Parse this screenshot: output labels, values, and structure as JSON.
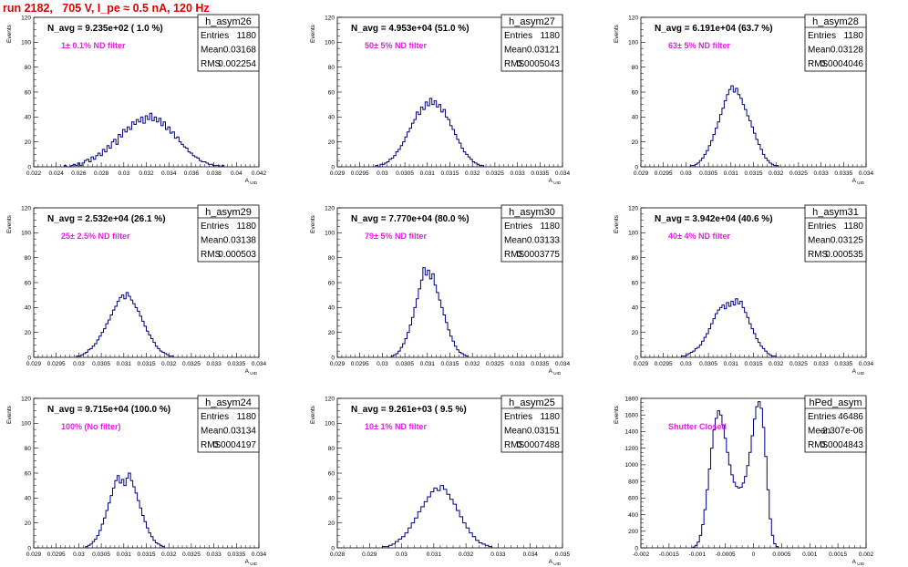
{
  "page_title": "run 2182,   705 V, I_pe ≈ 0.5 nA, 120 Hz",
  "chart_data": [
    {
      "type": "histogram",
      "name": "h_asym26",
      "n_avg": "N_avg = 9.235e+02 ( 1.0 %)",
      "note": "1± 0.1% ND filter",
      "ylabel": "Events",
      "xlabel": "A_UID",
      "ylim": [
        0,
        120
      ],
      "yticks": [
        0,
        20,
        40,
        60,
        80,
        100,
        120
      ],
      "xlim": [
        0.022,
        0.042
      ],
      "xticks": [
        "0.022",
        "0.024",
        "0.026",
        "0.028",
        "0.03",
        "0.032",
        "0.034",
        "0.036",
        "0.038",
        "0.04",
        "0.042"
      ],
      "stats": [
        [
          "Entries",
          "1180"
        ],
        [
          "Mean",
          "0.03168"
        ],
        [
          "RMS",
          "0.002254"
        ]
      ],
      "bins": {
        "start": 0.0247,
        "width": 0.0002,
        "counts": [
          1,
          0,
          0,
          1,
          2,
          1,
          3,
          1,
          3,
          5,
          6,
          4,
          8,
          6,
          9,
          11,
          9,
          14,
          12,
          17,
          15,
          20,
          22,
          18,
          26,
          24,
          30,
          28,
          32,
          30,
          36,
          34,
          38,
          36,
          40,
          35,
          41,
          38,
          43,
          37,
          40,
          36,
          39,
          33,
          36,
          30,
          32,
          27,
          28,
          23,
          24,
          20,
          18,
          16,
          15,
          12,
          11,
          9,
          8,
          7,
          5,
          4,
          4,
          3,
          2,
          2,
          1,
          1,
          1,
          0,
          1
        ]
      }
    },
    {
      "type": "histogram",
      "name": "h_asym27",
      "n_avg": "N_avg = 4.953e+04 (51.0 %)",
      "note": "50± 5% ND filter",
      "ylabel": "Events",
      "xlabel": "A_UID",
      "ylim": [
        0,
        120
      ],
      "yticks": [
        0,
        20,
        40,
        60,
        80,
        100,
        120
      ],
      "xlim": [
        0.029,
        0.034
      ],
      "xticks": [
        "0.029",
        "0.0295",
        "0.03",
        "0.0305",
        "0.031",
        "0.0315",
        "0.032",
        "0.0325",
        "0.033",
        "0.0335",
        "0.034"
      ],
      "stats": [
        [
          "Entries",
          "1180"
        ],
        [
          "Mean",
          "0.03121"
        ],
        [
          "RMS",
          "0.0005043"
        ]
      ],
      "bins": {
        "start": 0.02985,
        "width": 5e-05,
        "counts": [
          1,
          0,
          2,
          2,
          3,
          4,
          6,
          7,
          9,
          12,
          14,
          17,
          20,
          24,
          28,
          31,
          35,
          38,
          44,
          42,
          48,
          46,
          52,
          49,
          55,
          50,
          53,
          48,
          50,
          44,
          46,
          40,
          38,
          33,
          30,
          26,
          22,
          19,
          15,
          12,
          10,
          8,
          6,
          4,
          3,
          2,
          1,
          1
        ]
      }
    },
    {
      "type": "histogram",
      "name": "h_asym28",
      "n_avg": "N_avg = 6.191e+04 (63.7 %)",
      "note": "63± 5% ND filter",
      "ylabel": "Events",
      "xlabel": "A_UID",
      "ylim": [
        0,
        120
      ],
      "yticks": [
        0,
        20,
        40,
        60,
        80,
        100,
        120
      ],
      "xlim": [
        0.029,
        0.034
      ],
      "xticks": [
        "0.029",
        "0.0295",
        "0.03",
        "0.0305",
        "0.031",
        "0.0315",
        "0.032",
        "0.0325",
        "0.033",
        "0.0335",
        "0.034"
      ],
      "stats": [
        [
          "Entries",
          "1180"
        ],
        [
          "Mean",
          "0.03128"
        ],
        [
          "RMS",
          "0.0004046"
        ]
      ],
      "bins": {
        "start": 0.0301,
        "width": 5e-05,
        "counts": [
          1,
          1,
          2,
          3,
          5,
          7,
          10,
          13,
          17,
          21,
          26,
          31,
          36,
          42,
          47,
          53,
          58,
          62,
          65,
          60,
          63,
          58,
          55,
          50,
          46,
          41,
          37,
          32,
          27,
          22,
          18,
          14,
          10,
          7,
          5,
          3,
          2,
          1,
          1
        ]
      }
    },
    {
      "type": "histogram",
      "name": "h_asym29",
      "n_avg": "N_avg = 2.532e+04 (26.1 %)",
      "note": "25± 2.5% ND filter",
      "ylabel": "Events",
      "xlabel": "A_UID",
      "ylim": [
        0,
        120
      ],
      "yticks": [
        0,
        20,
        40,
        60,
        80,
        100,
        120
      ],
      "xlim": [
        0.029,
        0.034
      ],
      "xticks": [
        "0.029",
        "0.0295",
        "0.03",
        "0.0305",
        "0.031",
        "0.0315",
        "0.032",
        "0.0325",
        "0.033",
        "0.0335",
        "0.034"
      ],
      "stats": [
        [
          "Entries",
          "1180"
        ],
        [
          "Mean",
          "0.03138"
        ],
        [
          "RMS",
          "0.000503"
        ]
      ],
      "bins": {
        "start": 0.02995,
        "width": 5e-05,
        "counts": [
          1,
          1,
          2,
          3,
          4,
          6,
          7,
          9,
          11,
          14,
          17,
          20,
          23,
          27,
          30,
          34,
          38,
          41,
          45,
          48,
          50,
          47,
          52,
          49,
          46,
          43,
          40,
          37,
          33,
          29,
          25,
          21,
          18,
          15,
          12,
          9,
          7,
          5,
          4,
          3,
          2,
          1,
          1
        ]
      }
    },
    {
      "type": "histogram",
      "name": "h_asym30",
      "n_avg": "N_avg = 7.770e+04 (80.0 %)",
      "note": "79± 5% ND filter",
      "ylabel": "Events",
      "xlabel": "A_UID",
      "ylim": [
        0,
        120
      ],
      "yticks": [
        0,
        20,
        40,
        60,
        80,
        100,
        120
      ],
      "xlim": [
        0.029,
        0.034
      ],
      "xticks": [
        "0.029",
        "0.0295",
        "0.03",
        "0.0305",
        "0.031",
        "0.0315",
        "0.032",
        "0.0325",
        "0.033",
        "0.0335",
        "0.034"
      ],
      "stats": [
        [
          "Entries",
          "1180"
        ],
        [
          "Mean",
          "0.03133"
        ],
        [
          "RMS",
          "0.0003775"
        ]
      ],
      "bins": {
        "start": 0.0302,
        "width": 5e-05,
        "counts": [
          1,
          2,
          3,
          5,
          8,
          11,
          15,
          20,
          26,
          32,
          40,
          47,
          55,
          62,
          72,
          66,
          70,
          63,
          67,
          58,
          52,
          46,
          40,
          34,
          28,
          22,
          17,
          13,
          9,
          6,
          4,
          3,
          2,
          1
        ]
      }
    },
    {
      "type": "histogram",
      "name": "h_asym31",
      "n_avg": "N_avg = 3.942e+04 (40.6 %)",
      "note": "40± 4% ND filter",
      "ylabel": "Events",
      "xlabel": "A_UID",
      "ylim": [
        0,
        120
      ],
      "yticks": [
        0,
        20,
        40,
        60,
        80,
        100,
        120
      ],
      "xlim": [
        0.029,
        0.034
      ],
      "xticks": [
        "0.029",
        "0.0295",
        "0.03",
        "0.0305",
        "0.031",
        "0.0315",
        "0.032",
        "0.0325",
        "0.033",
        "0.0335",
        "0.034"
      ],
      "stats": [
        [
          "Entries",
          "1180"
        ],
        [
          "Mean",
          "0.03125"
        ],
        [
          "RMS",
          "0.000535"
        ]
      ],
      "bins": {
        "start": 0.0299,
        "width": 5e-05,
        "counts": [
          1,
          1,
          2,
          3,
          4,
          5,
          7,
          8,
          10,
          13,
          16,
          19,
          23,
          27,
          31,
          35,
          38,
          40,
          42,
          39,
          44,
          41,
          45,
          42,
          47,
          43,
          45,
          40,
          36,
          32,
          27,
          23,
          19,
          15,
          12,
          9,
          7,
          5,
          3,
          2,
          1,
          1
        ]
      }
    },
    {
      "type": "histogram",
      "name": "h_asym24",
      "n_avg": "N_avg = 9.715e+04 (100.0 %)",
      "note": "100% (No filter)",
      "ylabel": "Events",
      "xlabel": "A_UID",
      "ylim": [
        0,
        120
      ],
      "yticks": [
        0,
        20,
        40,
        60,
        80,
        100,
        120
      ],
      "xlim": [
        0.029,
        0.034
      ],
      "xticks": [
        "0.029",
        "0.0295",
        "0.03",
        "0.0305",
        "0.031",
        "0.0315",
        "0.032",
        "0.0325",
        "0.033",
        "0.0335",
        "0.034"
      ],
      "stats": [
        [
          "Entries",
          "1180"
        ],
        [
          "Mean",
          "0.03134"
        ],
        [
          "RMS",
          "0.0004197"
        ]
      ],
      "bins": {
        "start": 0.03015,
        "width": 5e-05,
        "counts": [
          1,
          2,
          3,
          5,
          7,
          10,
          14,
          19,
          24,
          30,
          36,
          42,
          48,
          54,
          58,
          52,
          55,
          50,
          56,
          60,
          54,
          49,
          44,
          38,
          32,
          26,
          21,
          16,
          12,
          9,
          6,
          4,
          3,
          2,
          1
        ]
      }
    },
    {
      "type": "histogram",
      "name": "h_asym25",
      "n_avg": "N_avg = 9.261e+03 ( 9.5 %)",
      "note": "10± 1% ND filter",
      "ylabel": "Events",
      "xlabel": "A_UID",
      "ylim": [
        0,
        120
      ],
      "yticks": [
        0,
        20,
        40,
        60,
        80,
        100,
        120
      ],
      "xlim": [
        0.028,
        0.035
      ],
      "xticks": [
        "0.028",
        "0.029",
        "0.03",
        "0.031",
        "0.032",
        "0.033",
        "0.034",
        "0.035"
      ],
      "stats": [
        [
          "Entries",
          "1180"
        ],
        [
          "Mean",
          "0.03151"
        ],
        [
          "RMS",
          "0.0007488"
        ]
      ],
      "bins": {
        "start": 0.0294,
        "width": 0.0001,
        "counts": [
          1,
          1,
          2,
          3,
          5,
          7,
          9,
          12,
          16,
          20,
          24,
          29,
          33,
          37,
          41,
          45,
          48,
          46,
          50,
          47,
          43,
          39,
          35,
          30,
          25,
          20,
          16,
          12,
          9,
          6,
          4,
          3,
          2,
          1
        ]
      }
    },
    {
      "type": "histogram",
      "name": "hPed_asym",
      "n_avg": "",
      "note": "Shutter Closed",
      "ylabel": "Events",
      "xlabel": "A_UID",
      "ylim": [
        0,
        1800
      ],
      "yticks": [
        0,
        200,
        400,
        600,
        800,
        1000,
        1200,
        1400,
        1600,
        1800
      ],
      "xlim": [
        -0.002,
        0.002
      ],
      "xticks": [
        "-0.002",
        "-0.0015",
        "-0.001",
        "-0.0005",
        "0",
        "0.0005",
        "0.001",
        "0.0015",
        "0.002"
      ],
      "stats": [
        [
          "Entries",
          "46486"
        ],
        [
          "Mean",
          "-2.307e-06"
        ],
        [
          "RMS",
          "0.0004843"
        ]
      ],
      "bins": {
        "start": -0.00108,
        "width": 4e-05,
        "counts": [
          10,
          30,
          70,
          150,
          280,
          460,
          700,
          950,
          1200,
          1420,
          1560,
          1650,
          1600,
          1480,
          1320,
          1150,
          1000,
          880,
          790,
          740,
          720,
          730,
          780,
          860,
          990,
          1150,
          1350,
          1550,
          1700,
          1760,
          1680,
          1450,
          1100,
          700,
          350,
          150,
          50,
          15
        ]
      }
    }
  ]
}
